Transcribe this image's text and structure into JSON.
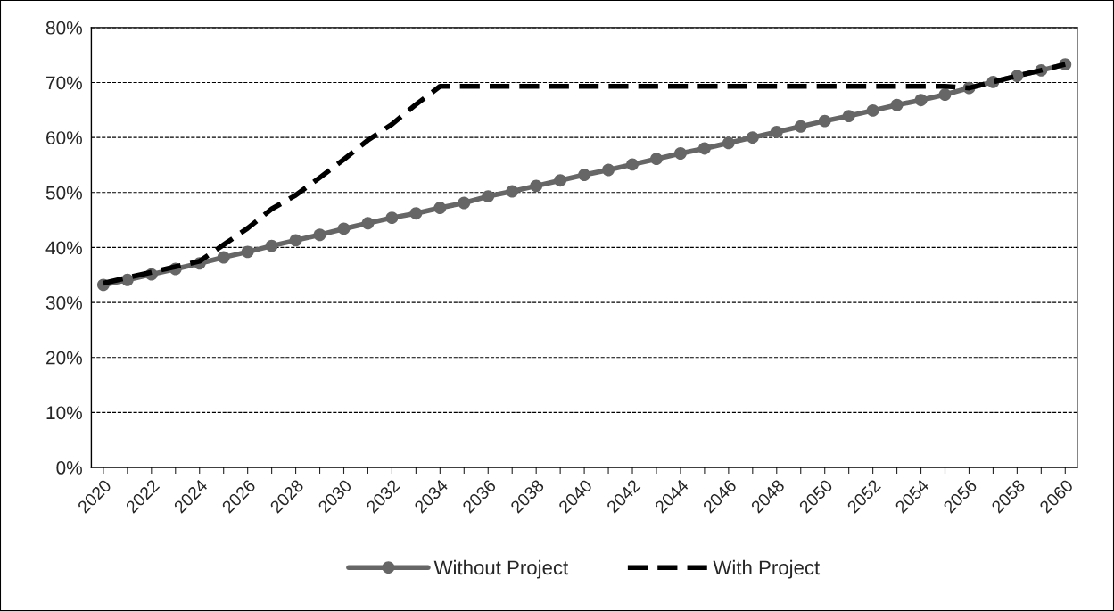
{
  "chart_data": {
    "type": "line",
    "categories": [
      "2020",
      null,
      "2022",
      null,
      "2024",
      null,
      "2026",
      null,
      "2028",
      null,
      "2030",
      null,
      "2032",
      null,
      "2034",
      null,
      "2036",
      null,
      "2038",
      null,
      "2040",
      null,
      "2042",
      null,
      "2044",
      null,
      "2046",
      null,
      "2048",
      null,
      "2050",
      null,
      "2052",
      null,
      "2054",
      null,
      "2056",
      null,
      "2058",
      null,
      "2060"
    ],
    "series": [
      {
        "name": "Without Project",
        "color": "#666666",
        "marker": "circle",
        "line_style": "solid",
        "values": [
          33.2,
          34.1,
          35.1,
          36.1,
          37.1,
          38.2,
          39.2,
          40.3,
          41.3,
          42.3,
          43.4,
          44.4,
          45.4,
          46.2,
          47.2,
          48.1,
          49.3,
          50.2,
          51.2,
          52.2,
          53.2,
          54.1,
          55.1,
          56.1,
          57.1,
          58.0,
          59.0,
          60.0,
          61.0,
          62.0,
          63.0,
          63.9,
          64.9,
          65.9,
          66.8,
          67.8,
          69.0,
          70.1,
          71.2,
          72.2,
          73.3
        ]
      },
      {
        "name": "With Project",
        "color": "#000000",
        "marker": "none",
        "line_style": "dashed",
        "values": [
          33.5,
          34.5,
          35.5,
          36.5,
          37.5,
          40.5,
          43.5,
          47.0,
          49.5,
          52.7,
          56.0,
          59.5,
          62.4,
          66.0,
          69.3,
          69.3,
          69.3,
          69.3,
          69.3,
          69.3,
          69.3,
          69.3,
          69.3,
          69.3,
          69.3,
          69.3,
          69.3,
          69.3,
          69.3,
          69.3,
          69.3,
          69.3,
          69.3,
          69.3,
          69.3,
          69.3,
          69.0,
          70.1,
          71.2,
          72.2,
          73.3
        ]
      }
    ],
    "ylim": [
      0,
      80
    ],
    "yticks": [
      {
        "value": 0,
        "label": "0%"
      },
      {
        "value": 10,
        "label": "10%"
      },
      {
        "value": 20,
        "label": "20%"
      },
      {
        "value": 30,
        "label": "30%"
      },
      {
        "value": 40,
        "label": "40%"
      },
      {
        "value": 50,
        "label": "50%"
      },
      {
        "value": 60,
        "label": "60%"
      },
      {
        "value": 70,
        "label": "70%"
      },
      {
        "value": 80,
        "label": "80%"
      }
    ],
    "grid": "y",
    "legend": "bottom"
  }
}
